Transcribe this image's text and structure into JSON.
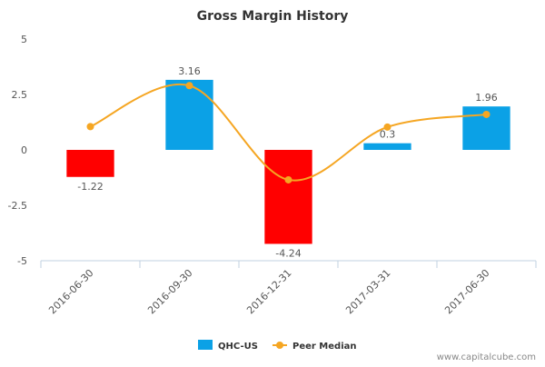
{
  "chart_data": {
    "type": "bar",
    "title": "Gross Margin History",
    "xlabel": "",
    "ylabel": "",
    "ylim": [
      -5,
      5
    ],
    "yticks": [
      5,
      2.5,
      0,
      -2.5,
      -5
    ],
    "ytick_labels": [
      "5",
      "2.5",
      "0",
      "-2.5",
      "-5"
    ],
    "categories": [
      "2016-06-30",
      "2016-09-30",
      "2016-12-31",
      "2017-03-31",
      "2017-06-30"
    ],
    "series": [
      {
        "name": "QHC-US",
        "type": "bar",
        "values": [
          -1.22,
          3.16,
          -4.24,
          0.3,
          1.96
        ],
        "value_labels": [
          "-1.22",
          "3.16",
          "-4.24",
          "0.3",
          "1.96"
        ],
        "positive_color": "#0ba1e6",
        "negative_color": "#ff0000"
      },
      {
        "name": "Peer Median",
        "type": "line",
        "values": [
          1.05,
          2.9,
          -1.35,
          1.03,
          1.6
        ],
        "color": "#f5a623"
      }
    ],
    "grid": false,
    "legend_position": "bottom-center"
  },
  "watermark": "www.capitalcube.com",
  "colors": {
    "axis": "#c0d0e0",
    "text": "#333333",
    "tick_text": "#555555",
    "value_label": "#555555",
    "watermark": "#888888"
  }
}
